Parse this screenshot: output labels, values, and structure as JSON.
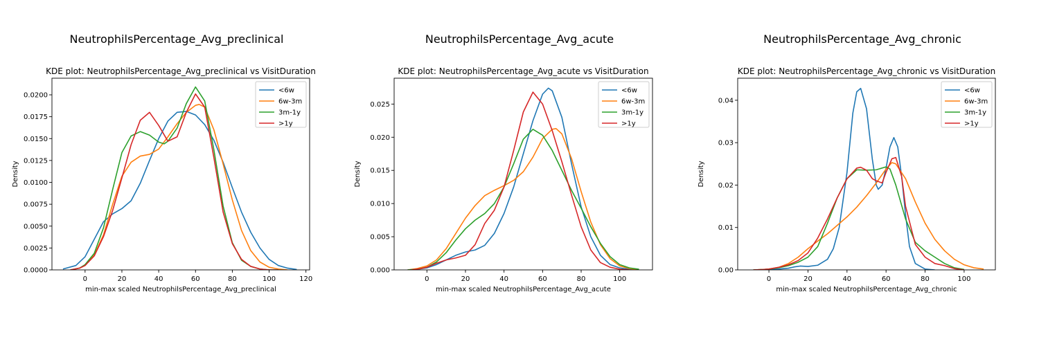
{
  "figure": {
    "subplots": [
      {
        "figure_title": "NeutrophilsPercentage_Avg_preclinical"
      },
      {
        "figure_title": "NeutrophilsPercentage_Avg_acute"
      },
      {
        "figure_title": "NeutrophilsPercentage_Avg_chronic"
      }
    ]
  },
  "chart_data": [
    {
      "type": "line",
      "title": "KDE plot:  NeutrophilsPercentage_Avg_preclinical vs VisitDuration",
      "xlabel": "min-max scaled NeutrophilsPercentage_Avg_preclinical",
      "ylabel": "Density",
      "xlim": [
        -18,
        122
      ],
      "ylim": [
        0,
        0.0219
      ],
      "xticks": [
        0,
        20,
        40,
        60,
        80,
        100,
        120
      ],
      "yticks": [
        0,
        0.0025,
        0.005,
        0.0075,
        0.01,
        0.0125,
        0.015,
        0.0175,
        0.02
      ],
      "ytick_labels": [
        "0.0000",
        "0.0025",
        "0.0050",
        "0.0075",
        "0.0100",
        "0.0125",
        "0.0150",
        "0.0175",
        "0.0200"
      ],
      "legend_position": "top-right",
      "series": [
        {
          "name": "<6w",
          "color": "#1f77b4",
          "x": [
            -12,
            -5,
            0,
            5,
            10,
            15,
            20,
            25,
            30,
            35,
            40,
            45,
            50,
            55,
            60,
            65,
            70,
            75,
            80,
            85,
            90,
            95,
            100,
            105,
            110,
            115
          ],
          "y": [
            0.0001,
            0.0005,
            0.0015,
            0.0035,
            0.0055,
            0.0064,
            0.007,
            0.0079,
            0.0099,
            0.0125,
            0.015,
            0.017,
            0.018,
            0.0181,
            0.0177,
            0.0166,
            0.0148,
            0.0123,
            0.0094,
            0.0066,
            0.0043,
            0.0025,
            0.0012,
            0.0005,
            0.0002,
            5e-05
          ]
        },
        {
          "name": "6w-3m",
          "color": "#ff7f0e",
          "x": [
            -8,
            -3,
            0,
            5,
            10,
            15,
            20,
            25,
            30,
            35,
            40,
            45,
            50,
            55,
            60,
            62,
            65,
            70,
            75,
            80,
            85,
            90,
            95,
            100,
            105,
            110
          ],
          "y": [
            0,
            0.0002,
            0.0005,
            0.0017,
            0.004,
            0.0075,
            0.0107,
            0.0123,
            0.013,
            0.0132,
            0.0138,
            0.0152,
            0.0167,
            0.018,
            0.0188,
            0.0189,
            0.0186,
            0.016,
            0.0121,
            0.008,
            0.0045,
            0.0022,
            0.0009,
            0.0003,
            0.0001,
            0
          ]
        },
        {
          "name": "3m-1y",
          "color": "#2ca02c",
          "x": [
            -8,
            -3,
            0,
            5,
            10,
            15,
            20,
            25,
            30,
            35,
            40,
            43,
            45,
            50,
            55,
            60,
            65,
            70,
            75,
            80,
            85,
            90,
            95,
            100,
            105
          ],
          "y": [
            0,
            0.0002,
            0.0006,
            0.0019,
            0.0048,
            0.0092,
            0.0134,
            0.0153,
            0.0158,
            0.0154,
            0.0146,
            0.0144,
            0.0147,
            0.0162,
            0.019,
            0.0209,
            0.0193,
            0.0137,
            0.0073,
            0.0031,
            0.0011,
            0.0004,
            0.0001,
            0,
            0
          ]
        },
        {
          "name": ">1y",
          "color": "#d62728",
          "x": [
            -8,
            -3,
            0,
            5,
            10,
            15,
            20,
            25,
            30,
            35,
            40,
            45,
            50,
            55,
            60,
            65,
            70,
            75,
            80,
            85,
            90,
            95,
            100,
            105
          ],
          "y": [
            0,
            0.0002,
            0.0005,
            0.0016,
            0.0038,
            0.0068,
            0.0105,
            0.0143,
            0.0171,
            0.018,
            0.0165,
            0.0147,
            0.0152,
            0.018,
            0.0201,
            0.0186,
            0.0128,
            0.0066,
            0.003,
            0.0012,
            0.0004,
            0.0001,
            0,
            0
          ]
        }
      ]
    },
    {
      "type": "line",
      "title": "KDE plot:  NeutrophilsPercentage_Avg_acute vs VisitDuration",
      "xlabel": "min-max scaled NeutrophilsPercentage_Avg_acute",
      "ylabel": "Density",
      "xlim": [
        -17,
        117
      ],
      "ylim": [
        0,
        0.0289
      ],
      "xticks": [
        0,
        20,
        40,
        60,
        80,
        100
      ],
      "yticks": [
        0,
        0.005,
        0.01,
        0.015,
        0.02,
        0.025
      ],
      "ytick_labels": [
        "0.000",
        "0.005",
        "0.010",
        "0.015",
        "0.020",
        "0.025"
      ],
      "legend_position": "top-right",
      "series": [
        {
          "name": "<6w",
          "color": "#1f77b4",
          "x": [
            -10,
            -5,
            0,
            5,
            10,
            15,
            20,
            25,
            30,
            35,
            40,
            45,
            50,
            55,
            60,
            63,
            65,
            70,
            75,
            80,
            85,
            90,
            95,
            100,
            105,
            110
          ],
          "y": [
            0,
            0.0001,
            0.0003,
            0.0008,
            0.0015,
            0.0022,
            0.0027,
            0.003,
            0.0037,
            0.0055,
            0.0085,
            0.0125,
            0.0175,
            0.0225,
            0.0265,
            0.0274,
            0.027,
            0.023,
            0.016,
            0.0095,
            0.005,
            0.0022,
            0.0008,
            0.0003,
            0.0001,
            0
          ]
        },
        {
          "name": "6w-3m",
          "color": "#ff7f0e",
          "x": [
            -10,
            -5,
            0,
            5,
            10,
            15,
            20,
            25,
            30,
            35,
            40,
            45,
            50,
            55,
            60,
            65,
            67,
            70,
            75,
            80,
            85,
            90,
            95,
            100,
            105,
            110
          ],
          "y": [
            0,
            0.0002,
            0.0006,
            0.0015,
            0.0032,
            0.0055,
            0.0078,
            0.0097,
            0.0112,
            0.012,
            0.0127,
            0.0135,
            0.0148,
            0.017,
            0.0198,
            0.0212,
            0.0213,
            0.0205,
            0.0168,
            0.0118,
            0.0072,
            0.0038,
            0.0017,
            0.0006,
            0.0002,
            0
          ]
        },
        {
          "name": "3m-1y",
          "color": "#2ca02c",
          "x": [
            -10,
            -5,
            0,
            5,
            10,
            15,
            20,
            25,
            30,
            35,
            40,
            45,
            50,
            55,
            60,
            65,
            70,
            75,
            80,
            85,
            90,
            95,
            100,
            105,
            110
          ],
          "y": [
            0,
            0.0001,
            0.0004,
            0.0012,
            0.0026,
            0.0045,
            0.0062,
            0.0075,
            0.0085,
            0.01,
            0.0125,
            0.016,
            0.0197,
            0.0212,
            0.0203,
            0.018,
            0.015,
            0.012,
            0.0093,
            0.0065,
            0.004,
            0.002,
            0.0008,
            0.0003,
            0.0001
          ]
        },
        {
          "name": ">1y",
          "color": "#d62728",
          "x": [
            -8,
            -3,
            0,
            5,
            10,
            15,
            20,
            25,
            30,
            35,
            40,
            45,
            50,
            55,
            60,
            65,
            70,
            75,
            80,
            85,
            90,
            95,
            100,
            105
          ],
          "y": [
            0,
            0.0002,
            0.0004,
            0.001,
            0.0015,
            0.0018,
            0.0022,
            0.0038,
            0.007,
            0.009,
            0.0125,
            0.018,
            0.0238,
            0.0268,
            0.025,
            0.021,
            0.0163,
            0.0113,
            0.0065,
            0.003,
            0.0011,
            0.0004,
            0.0001,
            0
          ]
        }
      ]
    },
    {
      "type": "line",
      "title": "KDE plot:  NeutrophilsPercentage_Avg_chronic vs VisitDuration",
      "xlabel": "min-max scaled NeutrophilsPercentage_Avg_chronic",
      "ylabel": "Density",
      "xlim": [
        -16,
        116
      ],
      "ylim": [
        0,
        0.0452
      ],
      "xticks": [
        0,
        20,
        40,
        60,
        80,
        100
      ],
      "yticks": [
        0,
        0.01,
        0.02,
        0.03,
        0.04
      ],
      "ytick_labels": [
        "0.00",
        "0.01",
        "0.02",
        "0.03",
        "0.04"
      ],
      "legend_position": "top-right",
      "series": [
        {
          "name": "<6w",
          "color": "#1f77b4",
          "x": [
            -3,
            0,
            5,
            10,
            13,
            16,
            20,
            25,
            30,
            33,
            36,
            40,
            43,
            45,
            47,
            50,
            53,
            55,
            56,
            58,
            60,
            62,
            64,
            66,
            68,
            70,
            72,
            75,
            80,
            85
          ],
          "y": [
            0,
            0.0001,
            0.0002,
            0.0004,
            0.0007,
            0.0009,
            0.0008,
            0.0011,
            0.0025,
            0.005,
            0.01,
            0.023,
            0.037,
            0.042,
            0.0428,
            0.038,
            0.026,
            0.02,
            0.019,
            0.02,
            0.024,
            0.029,
            0.0312,
            0.029,
            0.022,
            0.013,
            0.0055,
            0.0015,
            0.0002,
            0
          ]
        },
        {
          "name": "6w-3m",
          "color": "#ff7f0e",
          "x": [
            -8,
            -3,
            0,
            5,
            10,
            15,
            20,
            25,
            30,
            35,
            40,
            45,
            50,
            55,
            60,
            63,
            65,
            70,
            75,
            80,
            85,
            90,
            95,
            100,
            105,
            110
          ],
          "y": [
            0,
            0.0001,
            0.0002,
            0.0006,
            0.0015,
            0.003,
            0.005,
            0.0068,
            0.0085,
            0.0105,
            0.0125,
            0.0148,
            0.0175,
            0.0205,
            0.0238,
            0.0253,
            0.025,
            0.0215,
            0.016,
            0.011,
            0.0072,
            0.0045,
            0.0025,
            0.0012,
            0.0005,
            0.0002
          ]
        },
        {
          "name": "3m-1y",
          "color": "#2ca02c",
          "x": [
            -8,
            -3,
            0,
            5,
            10,
            15,
            20,
            25,
            30,
            35,
            40,
            45,
            50,
            55,
            60,
            62,
            65,
            70,
            75,
            80,
            85,
            90,
            95,
            100
          ],
          "y": [
            0,
            0.0001,
            0.0002,
            0.0005,
            0.001,
            0.0018,
            0.003,
            0.0055,
            0.011,
            0.017,
            0.0215,
            0.0236,
            0.0235,
            0.0236,
            0.0243,
            0.0238,
            0.02,
            0.012,
            0.0065,
            0.0045,
            0.003,
            0.0015,
            0.0005,
            0.0001
          ]
        },
        {
          "name": ">1y",
          "color": "#d62728",
          "x": [
            -8,
            -3,
            0,
            5,
            10,
            15,
            20,
            25,
            30,
            35,
            40,
            45,
            47,
            50,
            53,
            55,
            58,
            60,
            63,
            65,
            68,
            70,
            75,
            80,
            85,
            90,
            95,
            100
          ],
          "y": [
            0,
            0.0001,
            0.0002,
            0.0006,
            0.0012,
            0.0022,
            0.004,
            0.0075,
            0.012,
            0.017,
            0.0215,
            0.024,
            0.0242,
            0.0235,
            0.0215,
            0.021,
            0.0205,
            0.023,
            0.0262,
            0.0265,
            0.022,
            0.015,
            0.006,
            0.003,
            0.0015,
            0.001,
            0.0003,
            0
          ]
        }
      ]
    }
  ]
}
